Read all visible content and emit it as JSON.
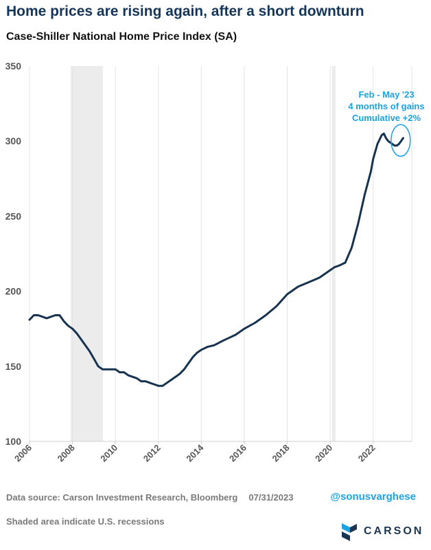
{
  "header": {
    "title": "Home prices are rising again, after a short downturn",
    "subtitle": "Case-Shiller National Home Price Index (SA)"
  },
  "footer": {
    "source": "Data source: Carson Investment Research, Bloomberg",
    "date": "07/31/2023",
    "note": "Shaded area indicate U.S. recessions",
    "handle": "@sonusvarghese",
    "brand": "CARSON"
  },
  "colors": {
    "line": "#16324f",
    "annotation": "#1aa3e0",
    "recession": "#ececec",
    "grid": "#e3e3e3"
  },
  "chart_data": {
    "type": "line",
    "title": "Case-Shiller National Home Price Index (SA)",
    "xlim": [
      2006.0,
      2023.8
    ],
    "ylim": [
      100,
      350
    ],
    "y_ticks": [
      100,
      150,
      200,
      250,
      300,
      350
    ],
    "x_ticks": [
      2006,
      2008,
      2010,
      2012,
      2014,
      2016,
      2018,
      2020,
      2022
    ],
    "x_tick_labels": [
      "2006",
      "2008",
      "2010",
      "2012",
      "2014",
      "2016",
      "2018",
      "2020",
      "2022"
    ],
    "grid": "vertical",
    "recessions": [
      {
        "start": "Dec 2007",
        "end": "Jun 2009"
      },
      {
        "start": "Feb 2020",
        "end": "Apr 2020"
      }
    ],
    "annotation": {
      "lines": [
        "Feb - May '23",
        "4 months of gains",
        "Cumulative +2%"
      ]
    },
    "series": [
      {
        "x": [
          2006.0,
          2006.2,
          2006.4,
          2006.6,
          2006.8,
          2007.0,
          2007.2,
          2007.4,
          2007.6,
          2007.8,
          2008.0,
          2008.2,
          2008.4,
          2008.6,
          2008.8,
          2009.0,
          2009.2,
          2009.4,
          2009.6,
          2009.8,
          2010.0,
          2010.2,
          2010.4,
          2010.6,
          2010.8,
          2011.0,
          2011.2,
          2011.4,
          2011.6,
          2011.8,
          2012.0,
          2012.2,
          2012.4,
          2012.6,
          2012.8,
          2013.0,
          2013.2,
          2013.4,
          2013.6,
          2013.8,
          2014.0,
          2014.3,
          2014.6,
          2015.0,
          2015.3,
          2015.6,
          2016.0,
          2016.5,
          2017.0,
          2017.5,
          2018.0,
          2018.5,
          2019.0,
          2019.5,
          2020.0,
          2020.2,
          2020.4,
          2020.7,
          2021.0,
          2021.3,
          2021.6,
          2021.9,
          2022.0,
          2022.2,
          2022.4,
          2022.5,
          2022.6,
          2022.7,
          2022.8,
          2022.9,
          2023.0,
          2023.1,
          2023.2,
          2023.3,
          2023.4
        ],
        "values": [
          181,
          184,
          184,
          183,
          182,
          183,
          184,
          184,
          180,
          177,
          175,
          172,
          168,
          164,
          160,
          155,
          150,
          148,
          148,
          148,
          148,
          146,
          146,
          144,
          143,
          142,
          140,
          140,
          139,
          138,
          137,
          137,
          139,
          141,
          143,
          145,
          148,
          152,
          156,
          159,
          161,
          163,
          164,
          167,
          169,
          171,
          175,
          179,
          184,
          190,
          198,
          203,
          206,
          209,
          214,
          216,
          217,
          219,
          229,
          245,
          264,
          280,
          288,
          298,
          304,
          305,
          302,
          300,
          299,
          298,
          297,
          297,
          298,
          300,
          302
        ]
      }
    ]
  }
}
